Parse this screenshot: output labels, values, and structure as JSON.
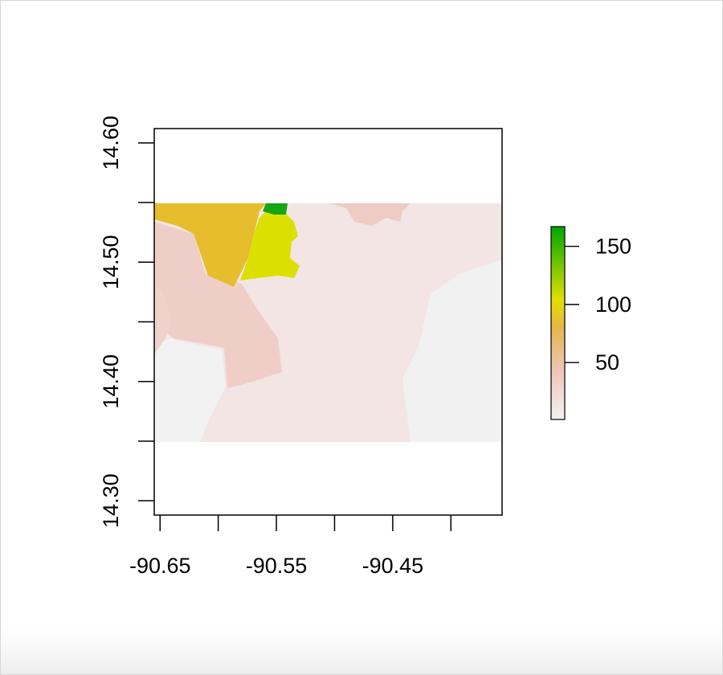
{
  "map": {
    "x_axis": {
      "range": [
        -90.655,
        -90.356
      ],
      "ticks": [
        -90.65,
        -90.6,
        -90.55,
        -90.5,
        -90.45,
        -90.4
      ],
      "labels": [
        {
          "value": -90.65,
          "text": "-90.65"
        },
        {
          "value": -90.55,
          "text": "-90.55"
        },
        {
          "value": -90.45,
          "text": "-90.45"
        }
      ]
    },
    "y_axis": {
      "range": [
        14.288,
        14.612
      ],
      "ticks": [
        14.3,
        14.35,
        14.4,
        14.45,
        14.5,
        14.55,
        14.6
      ],
      "labels": [
        {
          "value": 14.3,
          "text": "14.30"
        },
        {
          "value": 14.4,
          "text": "14.40"
        },
        {
          "value": 14.5,
          "text": "14.50"
        },
        {
          "value": 14.6,
          "text": "14.60"
        }
      ]
    },
    "raster_extent": {
      "x": [
        -90.655,
        -90.356
      ],
      "y": [
        14.35,
        14.55
      ]
    },
    "legend": {
      "placement": "right",
      "range": [
        1,
        167
      ],
      "ticks": [
        {
          "value": 50,
          "text": "50"
        },
        {
          "value": 100,
          "text": "100"
        },
        {
          "value": 150,
          "text": "150"
        }
      ],
      "colors": [
        "#f2f2f2",
        "#efc6b8",
        "#e5b64a",
        "#e0e000",
        "#00a600"
      ]
    },
    "zones": [
      {
        "name": "zone-gold",
        "color": "#e6bd2c",
        "value": 75
      },
      {
        "name": "zone-yellow",
        "color": "#dbe000",
        "value": 110
      },
      {
        "name": "zone-green",
        "color": "#16a514",
        "value": 160
      },
      {
        "name": "zone-pink-west",
        "color": "#f0cec8",
        "value": 20
      },
      {
        "name": "zone-pink-central",
        "color": "#f0d1cb",
        "value": 18
      },
      {
        "name": "zone-pink-north",
        "color": "#eecbc3",
        "value": 22
      },
      {
        "name": "zone-pale-main",
        "color": "#f2e5e4",
        "value": 8
      },
      {
        "name": "zone-gray-southwest",
        "color": "#f2f2f2",
        "value": 2
      },
      {
        "name": "zone-gray-east",
        "color": "#f2f1f1",
        "value": 3
      }
    ]
  }
}
